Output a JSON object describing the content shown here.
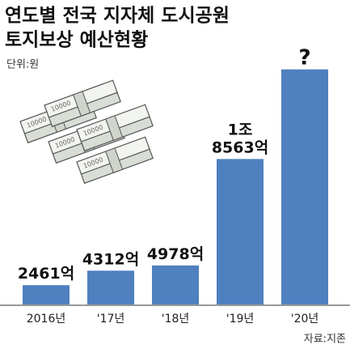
{
  "chart_data": {
    "type": "bar",
    "title": [
      "연도별 전국 지자체 도시공원",
      "토지보상 예산현황"
    ],
    "subtitle": "단위:원",
    "source": "자료:지존",
    "illustration_label": "10000",
    "categories": [
      "2016년",
      "'17년",
      "'18년",
      "'19년",
      "'20년"
    ],
    "values": [
      2461,
      4312,
      4978,
      18563,
      30000
    ],
    "value_labels": [
      "2461억",
      "4312억",
      "4978억",
      "1조 8563억",
      "?"
    ],
    "color": "#4f80bf",
    "ylim": [
      0,
      31000
    ]
  }
}
